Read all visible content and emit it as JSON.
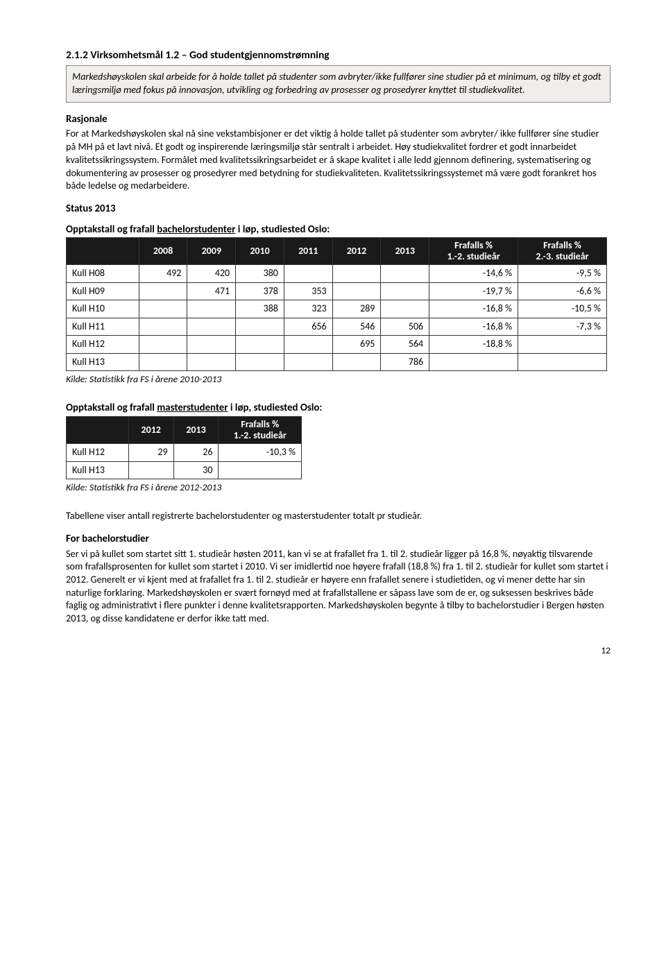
{
  "section": {
    "number_title": "2.1.2 Virksomhetsmål 1.2 – God studentgjennomstrømning"
  },
  "goalbox": "Markedshøyskolen skal arbeide for å holde tallet på studenter som avbryter/ikke fullfører sine studier på et minimum, og tilby et godt læringsmiljø med fokus på innovasjon, utvikling og forbedring av prosesser og prosedyrer knyttet til studiekvalitet.",
  "rationale": {
    "heading": "Rasjonale",
    "text": "For at Markedshøyskolen skal nå sine vekstambisjoner er det viktig å holde tallet på studenter som avbryter/ ikke fullfører sine studier på MH på et lavt nivå. Et godt og inspirerende læringsmiljø står sentralt i arbeidet. Høy studiekvalitet fordrer et godt innarbeidet kvalitetssikringssystem. Formålet med kvalitetssikringsarbeidet er å skape kvalitet i alle ledd gjennom definering, systematisering og dokumentering av prosesser og prosedyrer med betydning for studiekvaliteten. Kvalitetssikringssystemet må være godt forankret hos både ledelse og medarbeidere."
  },
  "status_heading": "Status 2013",
  "table1": {
    "title_pre": "Opptakstall og frafall ",
    "title_under": "bachelorstudenter",
    "title_post": " i løp, studiested Oslo:",
    "years": [
      "2008",
      "2009",
      "2010",
      "2011",
      "2012",
      "2013"
    ],
    "pct_head_top": "Frafalls %",
    "pct1_bottom": "1.-2. studieår",
    "pct2_bottom": "2.-3. studieår",
    "rows": [
      {
        "label": "Kull H08",
        "cells": [
          "492",
          "420",
          "380",
          "",
          "",
          ""
        ],
        "p1": "-14,6 %",
        "p2": "-9,5 %"
      },
      {
        "label": "Kull H09",
        "cells": [
          "",
          "471",
          "378",
          "353",
          "",
          ""
        ],
        "p1": "-19,7 %",
        "p2": "-6,6 %"
      },
      {
        "label": "Kull H10",
        "cells": [
          "",
          "",
          "388",
          "323",
          "289",
          ""
        ],
        "p1": "-16,8 %",
        "p2": "-10,5 %"
      },
      {
        "label": "Kull H11",
        "cells": [
          "",
          "",
          "",
          "656",
          "546",
          "506"
        ],
        "p1": "-16,8 %",
        "p2": "-7,3 %"
      },
      {
        "label": "Kull H12",
        "cells": [
          "",
          "",
          "",
          "",
          "695",
          "564"
        ],
        "p1": "-18,8 %",
        "p2": ""
      },
      {
        "label": "Kull H13",
        "cells": [
          "",
          "",
          "",
          "",
          "",
          "786"
        ],
        "p1": "",
        "p2": ""
      }
    ],
    "caption": "Kilde: Statistikk fra FS i årene 2010-2013"
  },
  "table2": {
    "title_pre": "Opptakstall og frafall ",
    "title_under": "masterstudenter",
    "title_post": " i løp, studiested Oslo:",
    "years": [
      "2012",
      "2013"
    ],
    "pct_head_top": "Frafalls %",
    "pct1_bottom": "1.-2. studieår",
    "rows": [
      {
        "label": "Kull H12",
        "cells": [
          "29",
          "26"
        ],
        "p1": "-10,3 %"
      },
      {
        "label": "Kull H13",
        "cells": [
          "",
          "30"
        ],
        "p1": ""
      }
    ],
    "caption": "Kilde: Statistikk fra FS i årene 2012-2013"
  },
  "after_tables_para": "Tabellene viser antall registrerte bachelorstudenter og masterstudenter totalt pr studieår.",
  "bachelor": {
    "heading": "For bachelorstudier",
    "text": "Ser vi på kullet som startet sitt 1. studieår høsten 2011, kan vi se at frafallet fra 1. til 2. studieår ligger på 16,8 %, nøyaktig tilsvarende som frafallsprosenten for kullet som startet i 2010. Vi ser imidlertid noe høyere frafall (18,8 %) fra 1. til 2. studieår for kullet som startet i 2012. Generelt er vi kjent med at frafallet fra 1. til 2. studieår er høyere enn frafallet senere i studietiden, og vi mener dette har sin naturlige forklaring. Markedshøyskolen er svært fornøyd med at frafallstallene er såpass lave som de er, og suksessen beskrives både faglig og administrativt i flere punkter i denne kvalitetsrapporten. Markedshøyskolen begynte å tilby to bachelorstudier i Bergen høsten 2013, og disse kandidatene er derfor ikke tatt med."
  },
  "page_number": "12"
}
